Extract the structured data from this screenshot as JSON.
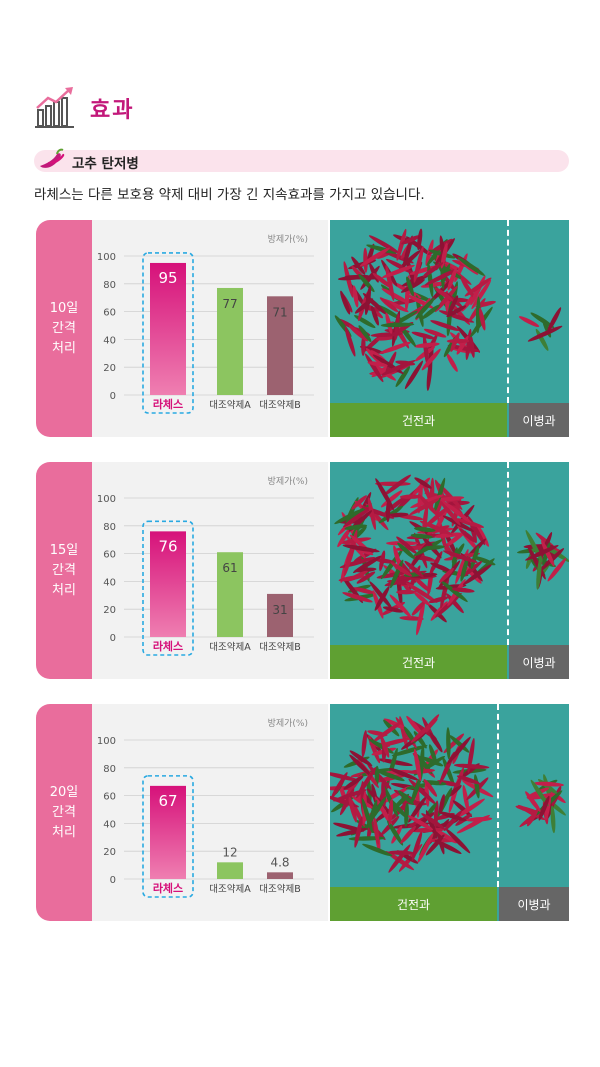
{
  "header": {
    "title": "효과",
    "icon": "growth-chart-icon"
  },
  "section": {
    "title": "고추 탄저병",
    "icon": "pepper-icon",
    "description": "라체스는 다른 보호용 약제 대비 가장 긴 지속효과를 가지고 있습니다."
  },
  "colors": {
    "accent": "#c2187a",
    "side": "#e96d9c",
    "highlight": "#d6117a",
    "control_a": "#8cc560",
    "control_b": "#9c6270",
    "dashed": "#29a9e1",
    "healthy_bar": "#5fa032",
    "disease_bar": "#666666"
  },
  "panels": [
    {
      "side_label": [
        "10일",
        "간격",
        "처리"
      ],
      "photo": {
        "healthy": "건전과",
        "diseased": "이병과"
      }
    },
    {
      "side_label": [
        "15일",
        "간격",
        "처리"
      ],
      "photo": {
        "healthy": "건전과",
        "diseased": "이병과"
      }
    },
    {
      "side_label": [
        "20일",
        "간격",
        "처리"
      ],
      "photo": {
        "healthy": "건전과",
        "diseased": "이병과"
      }
    }
  ],
  "chart_data": [
    {
      "type": "bar",
      "unit_label": "방제가(%)",
      "categories": [
        "라체스",
        "대조약제A",
        "대조약제B"
      ],
      "values": [
        95,
        77,
        71
      ],
      "ylim": [
        0,
        100
      ],
      "yticks": [
        0,
        20,
        40,
        60,
        80,
        100
      ]
    },
    {
      "type": "bar",
      "unit_label": "방제가(%)",
      "categories": [
        "라체스",
        "대조약제A",
        "대조약제B"
      ],
      "values": [
        76,
        61,
        31
      ],
      "ylim": [
        0,
        100
      ],
      "yticks": [
        0,
        20,
        40,
        60,
        80,
        100
      ]
    },
    {
      "type": "bar",
      "unit_label": "방제가(%)",
      "categories": [
        "라체스",
        "대조약제A",
        "대조약제B"
      ],
      "values": [
        67,
        12,
        4.8
      ],
      "ylim": [
        0,
        100
      ],
      "yticks": [
        0,
        20,
        40,
        60,
        80,
        100
      ]
    }
  ]
}
